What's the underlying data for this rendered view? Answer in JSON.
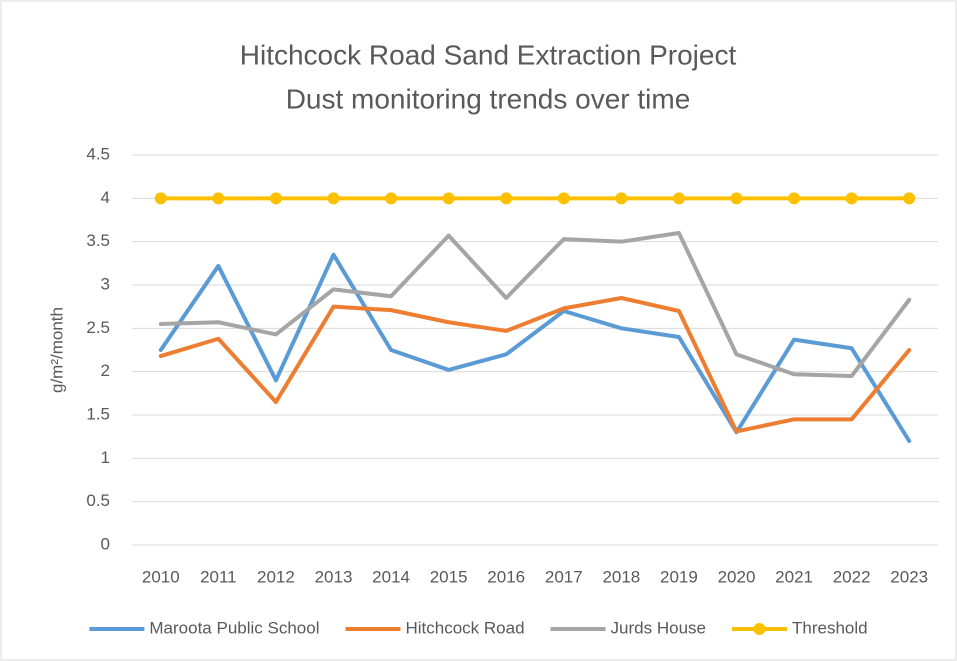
{
  "chart_data": {
    "type": "line",
    "title": "Hitchcock Road Sand Extraction Project",
    "subtitle": "Dust monitoring trends over time",
    "y_label": "g/m²/month",
    "categories": [
      "2010",
      "2011",
      "2012",
      "2013",
      "2014",
      "2015",
      "2016",
      "2017",
      "2018",
      "2019",
      "2020",
      "2021",
      "2022",
      "2023"
    ],
    "series": [
      {
        "name": "Maroota Public School",
        "color": "#5b9bd5",
        "values": [
          2.25,
          3.22,
          1.9,
          3.35,
          2.25,
          2.02,
          2.2,
          2.7,
          2.5,
          2.4,
          1.3,
          2.37,
          2.27,
          1.2
        ]
      },
      {
        "name": "Hitchcock Road",
        "color": "#ed7d31",
        "values": [
          2.18,
          2.38,
          1.65,
          2.75,
          2.71,
          2.57,
          2.47,
          2.73,
          2.85,
          2.7,
          1.31,
          1.45,
          1.45,
          2.25
        ]
      },
      {
        "name": "Jurds House",
        "color": "#a5a5a5",
        "values": [
          2.55,
          2.57,
          2.43,
          2.95,
          2.87,
          3.57,
          2.85,
          3.53,
          3.5,
          3.6,
          2.2,
          1.97,
          1.95,
          2.83
        ]
      },
      {
        "name": "Threshold",
        "color": "#ffc000",
        "markers": true,
        "values": [
          4,
          4,
          4,
          4,
          4,
          4,
          4,
          4,
          4,
          4,
          4,
          4,
          4,
          4
        ]
      }
    ],
    "ylim": [
      0,
      4.5
    ],
    "yticks": [
      0,
      0.5,
      1,
      1.5,
      2,
      2.5,
      3,
      3.5,
      4,
      4.5
    ],
    "grid": true,
    "legend": "bottom"
  }
}
